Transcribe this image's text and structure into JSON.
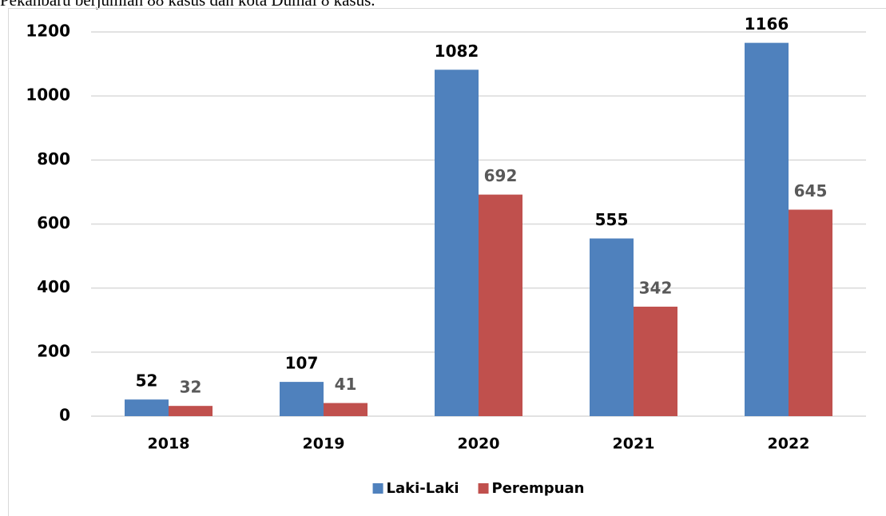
{
  "caption": "Pekanbaru berjumlah 88 kasus dan kota Dumai 8 kasus.",
  "chart_data": {
    "type": "bar",
    "categories": [
      "2018",
      "2019",
      "2020",
      "2021",
      "2022"
    ],
    "series": [
      {
        "name": "Laki-Laki",
        "color": "#4f81bd",
        "label_color": "#000000",
        "values": [
          52,
          107,
          1082,
          555,
          1166
        ]
      },
      {
        "name": "Perempuan",
        "color": "#c0504d",
        "label_color": "#595959",
        "values": [
          32,
          41,
          692,
          342,
          645
        ]
      }
    ],
    "ylim": [
      0,
      1200
    ],
    "yticks": [
      0,
      200,
      400,
      600,
      800,
      1000,
      1200
    ],
    "grid": true,
    "legend": "bottom"
  }
}
